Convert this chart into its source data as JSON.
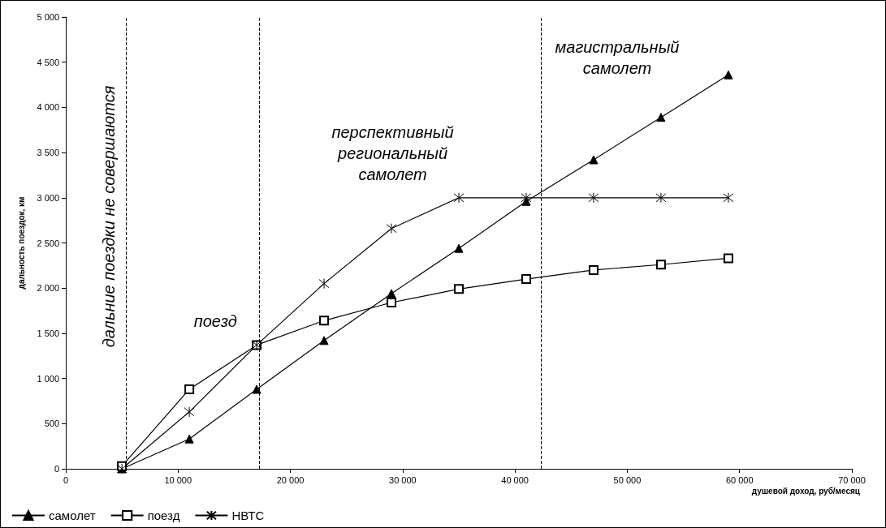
{
  "chart_data": {
    "type": "line",
    "xlabel": "душевой доход, руб/месяц",
    "ylabel": "дальность поездок, км",
    "x": [
      5000,
      11000,
      17000,
      23000,
      29000,
      35000,
      41000,
      47000,
      53000,
      59000
    ],
    "series": [
      {
        "name": "самолет",
        "color": "#000000",
        "marker": "triangle",
        "values": [
          0,
          330,
          880,
          1420,
          1940,
          2440,
          2960,
          3420,
          3890,
          4360
        ]
      },
      {
        "name": "поезд",
        "color": "#000000",
        "marker": "square",
        "values": [
          30,
          880,
          1370,
          1640,
          1840,
          1990,
          2100,
          2200,
          2260,
          2330
        ]
      },
      {
        "name": "НВТС",
        "color": "#000000",
        "marker": "cross",
        "values": [
          0,
          630,
          1370,
          2050,
          2660,
          3000,
          3000,
          3000,
          3000,
          3000
        ]
      }
    ],
    "xlim": [
      0,
      70000
    ],
    "xticks": [
      0,
      {
        "value": 10000,
        "label": "10 000"
      },
      {
        "value": 20000,
        "label": "20 000"
      },
      {
        "value": 30000,
        "label": "30 000"
      },
      {
        "value": 40000,
        "label": "40 000"
      },
      {
        "value": 50000,
        "label": "50 000"
      },
      {
        "value": 60000,
        "label": "60 000"
      },
      {
        "value": 70000,
        "label": "70 000"
      }
    ],
    "ylim": [
      0,
      5000
    ],
    "yticks": [
      0,
      500,
      {
        "value": 1000,
        "label": "1 000"
      },
      {
        "value": 1500,
        "label": "1 500"
      },
      {
        "value": 2000,
        "label": "2 000"
      },
      {
        "value": 2500,
        "label": "2 500"
      },
      {
        "value": 3000,
        "label": "3 000"
      },
      {
        "value": 3500,
        "label": "3 500"
      },
      {
        "value": 4000,
        "label": "4 000"
      },
      {
        "value": 4500,
        "label": "4 500"
      },
      {
        "value": 5000,
        "label": "5 000"
      }
    ],
    "ref_lines": [
      {
        "axis": "x",
        "value": 5400,
        "color": "#000000",
        "line_style": "dashed"
      },
      {
        "axis": "x",
        "value": 17200,
        "color": "#000000",
        "line_style": "dashed"
      },
      {
        "axis": "x",
        "value": 42300,
        "color": "#000000",
        "line_style": "dashed"
      }
    ],
    "annotations": [
      "дальние поездки не совершаются",
      "поезд",
      "перспективный\nрегиональный\nсамолет",
      "магистральный\nсамолет"
    ],
    "grid": false,
    "legend": "bottom left"
  }
}
